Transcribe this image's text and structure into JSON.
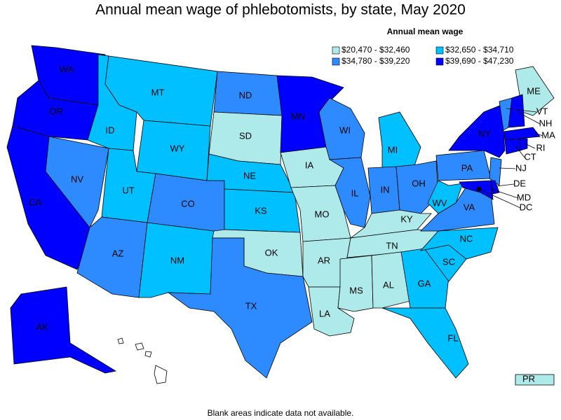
{
  "title": "Annual mean wage of phlebotomists, by state, May 2020",
  "legend": {
    "title": "Annual mean wage",
    "items": [
      {
        "label": "$20,470 - $32,460",
        "color": "#aeeaea"
      },
      {
        "label": "$32,650 - $34,710",
        "color": "#00c0ff"
      },
      {
        "label": "$34,780 - $39,220",
        "color": "#2e8bff"
      },
      {
        "label": "$39,690 - $47,230",
        "color": "#0000ff"
      }
    ]
  },
  "states": [
    {
      "label": "WA",
      "color": "#0000ff"
    },
    {
      "label": "OR",
      "color": "#0000ff"
    },
    {
      "label": "CA",
      "color": "#0000ff"
    },
    {
      "label": "NV",
      "color": "#2e8bff"
    },
    {
      "label": "ID",
      "color": "#00c0ff"
    },
    {
      "label": "MT",
      "color": "#00c0ff"
    },
    {
      "label": "WY",
      "color": "#00c0ff"
    },
    {
      "label": "UT",
      "color": "#00c0ff"
    },
    {
      "label": "CO",
      "color": "#2e8bff"
    },
    {
      "label": "AZ",
      "color": "#2e8bff"
    },
    {
      "label": "NM",
      "color": "#00c0ff"
    },
    {
      "label": "ND",
      "color": "#2e8bff"
    },
    {
      "label": "SD",
      "color": "#aeeaea"
    },
    {
      "label": "NE",
      "color": "#00c0ff"
    },
    {
      "label": "KS",
      "color": "#00c0ff"
    },
    {
      "label": "OK",
      "color": "#aeeaea"
    },
    {
      "label": "TX",
      "color": "#2e8bff"
    },
    {
      "label": "MN",
      "color": "#0000ff"
    },
    {
      "label": "IA",
      "color": "#aeeaea"
    },
    {
      "label": "MO",
      "color": "#aeeaea"
    },
    {
      "label": "AR",
      "color": "#aeeaea"
    },
    {
      "label": "LA",
      "color": "#aeeaea"
    },
    {
      "label": "WI",
      "color": "#2e8bff"
    },
    {
      "label": "IL",
      "color": "#2e8bff"
    },
    {
      "label": "MI",
      "color": "#00c0ff"
    },
    {
      "label": "IN",
      "color": "#2e8bff"
    },
    {
      "label": "OH",
      "color": "#2e8bff"
    },
    {
      "label": "KY",
      "color": "#aeeaea"
    },
    {
      "label": "TN",
      "color": "#aeeaea"
    },
    {
      "label": "MS",
      "color": "#aeeaea"
    },
    {
      "label": "AL",
      "color": "#aeeaea"
    },
    {
      "label": "GA",
      "color": "#00c0ff"
    },
    {
      "label": "FL",
      "color": "#00c0ff"
    },
    {
      "label": "SC",
      "color": "#00c0ff"
    },
    {
      "label": "NC",
      "color": "#00c0ff"
    },
    {
      "label": "VA",
      "color": "#2e8bff"
    },
    {
      "label": "WV",
      "color": "#00c0ff"
    },
    {
      "label": "PA",
      "color": "#2e8bff"
    },
    {
      "label": "NY",
      "color": "#0000ff"
    },
    {
      "label": "ME",
      "color": "#aeeaea"
    },
    {
      "label": "VT",
      "color": "#2e8bff"
    },
    {
      "label": "NH",
      "color": "#0000ff"
    },
    {
      "label": "MA",
      "color": "#0000ff"
    },
    {
      "label": "CT",
      "color": "#0000ff"
    },
    {
      "label": "RI",
      "color": "#0000ff"
    },
    {
      "label": "NJ",
      "color": "#2e8bff"
    },
    {
      "label": "DE",
      "color": "#0000ff"
    },
    {
      "label": "MD",
      "color": "#0000ff"
    },
    {
      "label": "DC",
      "color": "#000000"
    },
    {
      "label": "AK",
      "color": "#0000ff"
    },
    {
      "label": "PR",
      "color": "#aeeaea"
    }
  ],
  "footnote": "Blank areas indicate data not available."
}
